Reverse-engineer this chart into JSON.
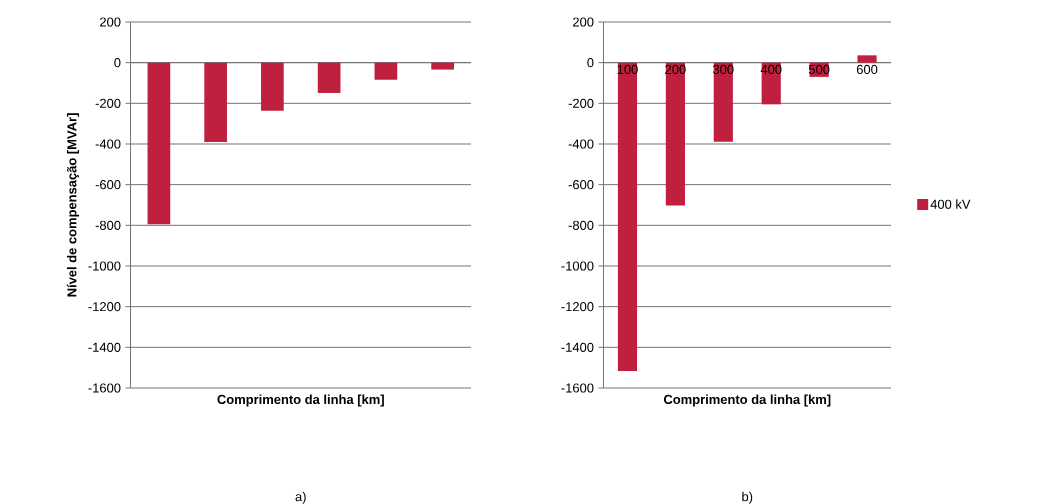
{
  "chart_data": [
    {
      "type": "bar",
      "categories": [
        null,
        null,
        null,
        null,
        null,
        null
      ],
      "values": [
        -795,
        -390,
        -236,
        -149,
        -84,
        -34
      ],
      "color": "#c0203f",
      "ylabel": "Nível de compensação [MVAr]",
      "xlabel": "Comprimento da linha [km]",
      "ylim": [
        -1600,
        200
      ],
      "yticks": [
        -1600,
        -1400,
        -1200,
        -1000,
        -800,
        -600,
        -400,
        -200,
        0,
        200
      ],
      "grid": "y",
      "tick_labels": "y",
      "annotations": [
        "a)"
      ]
    },
    {
      "type": "bar",
      "categories": [
        "100",
        "200",
        "300",
        "400",
        "500",
        "600"
      ],
      "series": [
        {
          "name": "400 kV",
          "color": "#c0203f",
          "values": [
            -1516,
            -702,
            -389,
            -205,
            -70,
            36
          ]
        }
      ],
      "xlabel": "Comprimento da linha [km]",
      "ylim": [
        -1600,
        200
      ],
      "yticks": [
        -1600,
        -1400,
        -1200,
        -1000,
        -800,
        -600,
        -400,
        -200,
        0,
        200
      ],
      "grid": "y",
      "legend": "right",
      "annotations": [
        "b)"
      ]
    }
  ]
}
